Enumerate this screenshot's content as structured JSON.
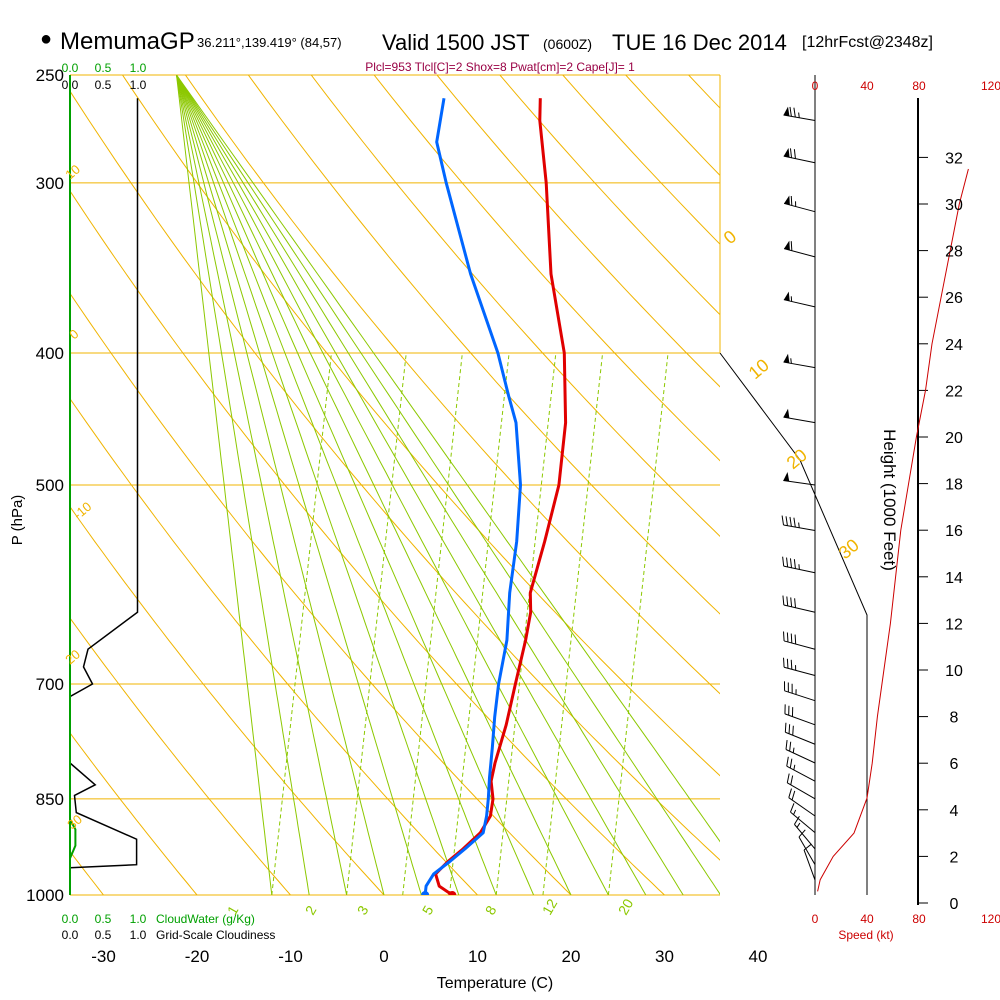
{
  "header": {
    "bullet": "●",
    "model": "MemumaGP",
    "location": "36.211°,139.419° (84,57)",
    "valid": "Valid 1500 JST",
    "valid_z": "(0600Z)",
    "date": "TUE 16 Dec 2014",
    "forecast": "[12hrFcst@2348z]",
    "params": "Plcl=953 Tlcl[C]=2 Shox=8 Pwat[cm]=2 Cape[J]= 1"
  },
  "colors": {
    "isobar": "#f0b400",
    "dry_adiabat": "#f0b400",
    "moist_adiabat": "#8cc800",
    "mixing_ratio": "#8cc800",
    "temperature": "#e00000",
    "dewpoint": "#0066ff",
    "cloud_water": "#00a000",
    "cloudiness": "#000000",
    "speed_profile": "#cc0000"
  },
  "chart_data": [
    {
      "type": "line",
      "title": "Skew-T log-P sounding",
      "xlabel": "Temperature (C)",
      "ylabel": "P (hPa)",
      "y2label": "Height (1000 Feet)",
      "temp_ticks": [
        -30,
        -20,
        -10,
        0,
        10,
        20,
        30,
        40
      ],
      "pressure_ticks": [
        250,
        300,
        400,
        500,
        700,
        850,
        1000
      ],
      "height_ticks": [
        0,
        2,
        4,
        6,
        8,
        10,
        12,
        14,
        16,
        18,
        20,
        22,
        24,
        26,
        28,
        30,
        32
      ],
      "dry_adiabat_labels": [
        "-10",
        "0",
        "10",
        "20",
        "30",
        "0",
        "10",
        "20",
        "30"
      ],
      "mixing_ratio_labels": [
        "1",
        "2",
        "3",
        "5",
        "8",
        "12",
        "20"
      ],
      "series": [
        {
          "name": "Temperature",
          "points": [
            {
              "p": 1000,
              "t": 7.3
            },
            {
              "p": 985,
              "t": 5.6
            },
            {
              "p": 965,
              "t": 4.8
            },
            {
              "p": 945,
              "t": 5.7
            },
            {
              "p": 925,
              "t": 6.9
            },
            {
              "p": 900,
              "t": 8.2
            },
            {
              "p": 875,
              "t": 8.7
            },
            {
              "p": 850,
              "t": 8.4
            },
            {
              "p": 825,
              "t": 7.6
            },
            {
              "p": 800,
              "t": 7.4
            },
            {
              "p": 750,
              "t": 7.3
            },
            {
              "p": 700,
              "t": 6.9
            },
            {
              "p": 650,
              "t": 6.5
            },
            {
              "p": 620,
              "t": 6.1
            },
            {
              "p": 600,
              "t": 5.4
            },
            {
              "p": 550,
              "t": 5.2
            },
            {
              "p": 500,
              "t": 4.8
            },
            {
              "p": 450,
              "t": 3.4
            },
            {
              "p": 400,
              "t": 0.9
            },
            {
              "p": 350,
              "t": -3.2
            },
            {
              "p": 300,
              "t": -6.8
            },
            {
              "p": 270,
              "t": -9.6
            },
            {
              "p": 260,
              "t": -10.3
            }
          ]
        },
        {
          "name": "Dewpoint",
          "points": [
            {
              "p": 1000,
              "t": 4.4
            },
            {
              "p": 985,
              "t": 4.2
            },
            {
              "p": 965,
              "t": 4.6
            },
            {
              "p": 945,
              "t": 5.9
            },
            {
              "p": 925,
              "t": 7.1
            },
            {
              "p": 900,
              "t": 8.5
            },
            {
              "p": 875,
              "t": 8.3
            },
            {
              "p": 850,
              "t": 7.9
            },
            {
              "p": 820,
              "t": 7.3
            },
            {
              "p": 780,
              "t": 6.6
            },
            {
              "p": 740,
              "t": 5.8
            },
            {
              "p": 700,
              "t": 5.1
            },
            {
              "p": 650,
              "t": 4.5
            },
            {
              "p": 600,
              "t": 3.2
            },
            {
              "p": 550,
              "t": 2.2
            },
            {
              "p": 500,
              "t": 0.7
            },
            {
              "p": 450,
              "t": -1.9
            },
            {
              "p": 430,
              "t": -3.6
            },
            {
              "p": 400,
              "t": -6.2
            },
            {
              "p": 350,
              "t": -11.8
            },
            {
              "p": 300,
              "t": -17.5
            },
            {
              "p": 280,
              "t": -19.9
            },
            {
              "p": 260,
              "t": -20.6
            }
          ]
        }
      ]
    },
    {
      "type": "line",
      "title": "Cloud water / grid-scale cloudiness",
      "cloudwater_ticks": [
        "0.0",
        "0.5",
        "1.0"
      ],
      "cloudiness_ticks": [
        "0.0",
        "0.5",
        "1.0"
      ],
      "cloudwater_label": "CloudWater (g/Kg)",
      "cloudiness_label": "Grid-Scale Cloudiness",
      "ylim": [
        0,
        1
      ],
      "series": [
        {
          "name": "Cloudiness",
          "points": [
            {
              "p": 260,
              "v": 0.75
            },
            {
              "p": 620,
              "v": 0.75
            },
            {
              "p": 660,
              "v": 0.2
            },
            {
              "p": 680,
              "v": 0.15
            },
            {
              "p": 700,
              "v": 0.25
            },
            {
              "p": 715,
              "v": 0.0
            },
            {
              "p": 800,
              "v": 0.0
            },
            {
              "p": 830,
              "v": 0.28
            },
            {
              "p": 845,
              "v": 0.05
            },
            {
              "p": 870,
              "v": 0.07
            },
            {
              "p": 910,
              "v": 0.74
            },
            {
              "p": 950,
              "v": 0.74
            },
            {
              "p": 955,
              "v": 0.0
            }
          ]
        },
        {
          "name": "CloudWater",
          "points": [
            {
              "p": 250,
              "v": 0.0
            },
            {
              "p": 880,
              "v": 0.0
            },
            {
              "p": 895,
              "v": 0.06
            },
            {
              "p": 920,
              "v": 0.06
            },
            {
              "p": 940,
              "v": 0.0
            },
            {
              "p": 1000,
              "v": 0.0
            }
          ]
        }
      ]
    },
    {
      "type": "line",
      "title": "Wind speed profile",
      "xlabel": "Speed (kt)",
      "speed_ticks": [
        0,
        40,
        80,
        120
      ],
      "series": [
        {
          "name": "Speed",
          "points": [
            {
              "h": 0.5,
              "s": 2
            },
            {
              "h": 1.0,
              "s": 4
            },
            {
              "h": 2.0,
              "s": 14
            },
            {
              "h": 3.0,
              "s": 30
            },
            {
              "h": 4.5,
              "s": 40
            },
            {
              "h": 6.0,
              "s": 44
            },
            {
              "h": 8.0,
              "s": 48
            },
            {
              "h": 10.0,
              "s": 53
            },
            {
              "h": 12.0,
              "s": 58
            },
            {
              "h": 14.0,
              "s": 62
            },
            {
              "h": 16.0,
              "s": 66
            },
            {
              "h": 18.0,
              "s": 72
            },
            {
              "h": 20.0,
              "s": 78
            },
            {
              "h": 22.0,
              "s": 85
            },
            {
              "h": 24.0,
              "s": 90
            },
            {
              "h": 26.0,
              "s": 97
            },
            {
              "h": 28.0,
              "s": 104
            },
            {
              "h": 30.0,
              "s": 111
            },
            {
              "h": 31.5,
              "s": 118
            }
          ]
        }
      ],
      "wind_barbs": [
        {
          "p": 270,
          "speed_kt": 75,
          "dir_deg": 280
        },
        {
          "p": 290,
          "speed_kt": 70,
          "dir_deg": 282
        },
        {
          "p": 315,
          "speed_kt": 65,
          "dir_deg": 285
        },
        {
          "p": 340,
          "speed_kt": 60,
          "dir_deg": 285
        },
        {
          "p": 370,
          "speed_kt": 55,
          "dir_deg": 283
        },
        {
          "p": 410,
          "speed_kt": 55,
          "dir_deg": 280
        },
        {
          "p": 450,
          "speed_kt": 50,
          "dir_deg": 280
        },
        {
          "p": 500,
          "speed_kt": 50,
          "dir_deg": 278
        },
        {
          "p": 540,
          "speed_kt": 45,
          "dir_deg": 280
        },
        {
          "p": 580,
          "speed_kt": 45,
          "dir_deg": 282
        },
        {
          "p": 620,
          "speed_kt": 40,
          "dir_deg": 283
        },
        {
          "p": 660,
          "speed_kt": 40,
          "dir_deg": 285
        },
        {
          "p": 690,
          "speed_kt": 35,
          "dir_deg": 285
        },
        {
          "p": 720,
          "speed_kt": 35,
          "dir_deg": 288
        },
        {
          "p": 750,
          "speed_kt": 30,
          "dir_deg": 290
        },
        {
          "p": 775,
          "speed_kt": 30,
          "dir_deg": 292
        },
        {
          "p": 800,
          "speed_kt": 25,
          "dir_deg": 295
        },
        {
          "p": 825,
          "speed_kt": 25,
          "dir_deg": 298
        },
        {
          "p": 850,
          "speed_kt": 20,
          "dir_deg": 300
        },
        {
          "p": 875,
          "speed_kt": 20,
          "dir_deg": 305
        },
        {
          "p": 900,
          "speed_kt": 15,
          "dir_deg": 310
        },
        {
          "p": 925,
          "speed_kt": 15,
          "dir_deg": 320
        },
        {
          "p": 950,
          "speed_kt": 10,
          "dir_deg": 330
        },
        {
          "p": 975,
          "speed_kt": 10,
          "dir_deg": 340
        }
      ]
    }
  ]
}
